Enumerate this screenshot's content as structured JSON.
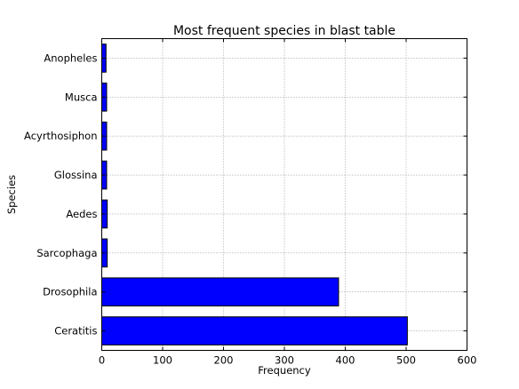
{
  "chart_data": {
    "type": "bar",
    "orientation": "horizontal",
    "title": "Most frequent species in blast table",
    "xlabel": "Frequency",
    "ylabel": "Species",
    "xlim": [
      0,
      600
    ],
    "xticks": [
      0,
      100,
      200,
      300,
      400,
      500,
      600
    ],
    "grid": true,
    "bar_color": "#0000ff",
    "edge_color": "#000000",
    "categories": [
      "Ceratitis",
      "Drosophila",
      "Sarcophaga",
      "Aedes",
      "Glossina",
      "Acyrthosiphon",
      "Musca",
      "Anopheles"
    ],
    "values": [
      502,
      389,
      9,
      9,
      8,
      8,
      8,
      7
    ]
  }
}
